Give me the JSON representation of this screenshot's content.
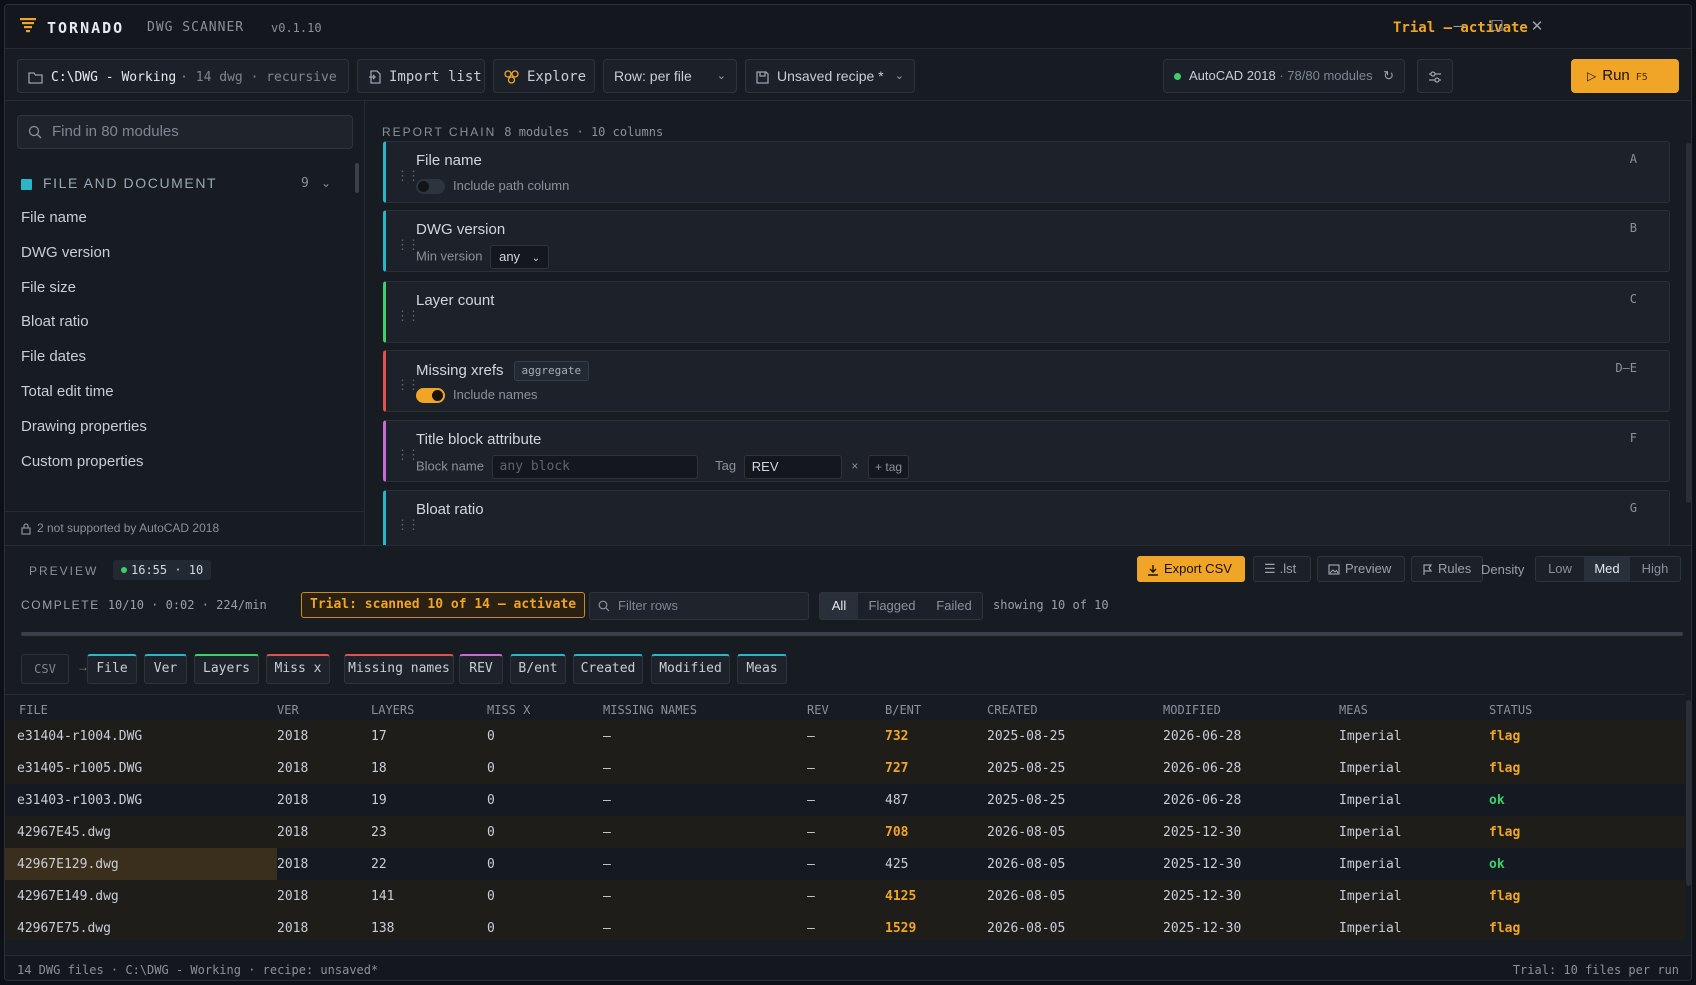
{
  "titlebar": {
    "brand": "TORNADO",
    "product": "DWG SCANNER",
    "version": "v0.1.10",
    "trial_link": "Trial — activate",
    "minimize_icon": "minimize-icon",
    "maximize_icon": "maximize-icon",
    "close_icon": "close-icon"
  },
  "toolbar": {
    "folder_path": "C:\\DWG - Working",
    "folder_meta": "· 14 dwg · recursive",
    "import_label": "Import list",
    "explore_label": "Explore",
    "row_mode": "Row: per file",
    "recipe": "Unsaved recipe *",
    "autocad_name": "AutoCAD 2018",
    "autocad_modules": "· 78/80 modules",
    "run_label": "Run",
    "run_key": "F5"
  },
  "sidebar": {
    "search_placeholder": "Find in 80 modules",
    "category": {
      "label": "FILE AND DOCUMENT",
      "count": "9",
      "color": "#2bb5c9"
    },
    "modules": [
      "File name",
      "DWG version",
      "File size",
      "Bloat ratio",
      "File dates",
      "Total edit time",
      "Drawing properties",
      "Custom properties"
    ],
    "footer_note": "2 not supported by AutoCAD 2018"
  },
  "chain": {
    "label": "REPORT CHAIN",
    "meta": "8 modules · 10 columns",
    "cards": [
      {
        "title": "File name",
        "letter": "A",
        "color": "#2bb5c9",
        "toggle_label": "Include path column",
        "toggle_on": false
      },
      {
        "title": "DWG version",
        "letter": "B",
        "color": "#2bb5c9",
        "option_label": "Min version",
        "option_value": "any"
      },
      {
        "title": "Layer count",
        "letter": "C",
        "color": "#3fcf6a"
      },
      {
        "title": "Missing xrefs",
        "letter": "D–E",
        "color": "#e0524b",
        "badge": "aggregate",
        "toggle_label": "Include names",
        "toggle_on": true
      },
      {
        "title": "Title block attribute",
        "letter": "F",
        "color": "#c86ad6",
        "block_label": "Block name",
        "block_placeholder": "any block",
        "tag_label": "Tag",
        "tag_value": "REV",
        "add_tag": "+ tag"
      },
      {
        "title": "Bloat ratio",
        "letter": "G",
        "color": "#2bb5c9"
      }
    ]
  },
  "preview": {
    "label": "PREVIEW",
    "time": "16:55 · 10",
    "export_label": "Export CSV",
    "lst_label": ".lst",
    "preview_label": "Preview",
    "rules_label": "Rules",
    "density_label": "Density",
    "density_options": [
      "Low",
      "Med",
      "High"
    ],
    "density_selected": "Med",
    "status": "COMPLETE",
    "status_meta": "10/10 · 0:02 · 224/min",
    "trial_chip": "Trial: scanned 10 of 14 — activate",
    "filter_placeholder": "Filter rows",
    "filters": [
      "All",
      "Flagged",
      "Failed"
    ],
    "filter_selected": "All",
    "showing": "showing 10 of 10",
    "progress": 1.0,
    "csv_tag": "CSV",
    "columns": [
      {
        "label": "File",
        "color": "#2bb5c9"
      },
      {
        "label": "Ver",
        "color": "#2bb5c9"
      },
      {
        "label": "Layers",
        "color": "#3fcf6a"
      },
      {
        "label": "Miss x",
        "color": "#e0524b"
      },
      {
        "label": "Missing names",
        "color": "#e0524b"
      },
      {
        "label": "REV",
        "color": "#c86ad6"
      },
      {
        "label": "B/ent",
        "color": "#2bb5c9"
      },
      {
        "label": "Created",
        "color": "#2bb5c9"
      },
      {
        "label": "Modified",
        "color": "#2bb5c9"
      },
      {
        "label": "Meas",
        "color": "#2bb5c9"
      }
    ]
  },
  "table": {
    "headers": [
      "FILE",
      "VER",
      "LAYERS",
      "MISS X",
      "MISSING NAMES",
      "REV",
      "B/ENT",
      "CREATED",
      "MODIFIED",
      "MEAS",
      "STATUS"
    ],
    "rows": [
      [
        "e31404-r1004.DWG",
        "2018",
        "17",
        "0",
        "—",
        "—",
        "732",
        "2025-08-25",
        "2026-06-28",
        "Imperial",
        "flag"
      ],
      [
        "e31405-r1005.DWG",
        "2018",
        "18",
        "0",
        "—",
        "—",
        "727",
        "2025-08-25",
        "2026-06-28",
        "Imperial",
        "flag"
      ],
      [
        "e31403-r1003.DWG",
        "2018",
        "19",
        "0",
        "—",
        "—",
        "487",
        "2025-08-25",
        "2026-06-28",
        "Imperial",
        "ok"
      ],
      [
        "42967E45.dwg",
        "2018",
        "23",
        "0",
        "—",
        "—",
        "708",
        "2026-08-05",
        "2025-12-30",
        "Imperial",
        "flag"
      ],
      [
        "42967E129.dwg",
        "2018",
        "22",
        "0",
        "—",
        "—",
        "425",
        "2026-08-05",
        "2025-12-30",
        "Imperial",
        "ok"
      ],
      [
        "42967E149.dwg",
        "2018",
        "141",
        "0",
        "—",
        "—",
        "4125",
        "2026-08-05",
        "2025-12-30",
        "Imperial",
        "flag"
      ],
      [
        "42967E75.dwg",
        "2018",
        "138",
        "0",
        "—",
        "—",
        "1529",
        "2026-08-05",
        "2025-12-30",
        "Imperial",
        "flag"
      ]
    ],
    "selected_row": 4
  },
  "footer": {
    "left": "14 DWG files · C:\\DWG - Working · recipe: unsaved*",
    "right": "Trial: 10 files per run"
  }
}
